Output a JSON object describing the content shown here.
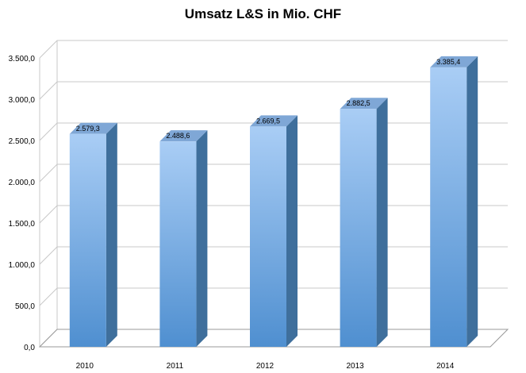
{
  "chart_data": {
    "type": "bar",
    "title": "Umsatz L&S in Mio. CHF",
    "xlabel": "",
    "ylabel": "",
    "categories": [
      "2010",
      "2011",
      "2012",
      "2013",
      "2014"
    ],
    "series": [
      {
        "values": [
          2579.3,
          2488.6,
          2669.5,
          2882.5,
          3385.4
        ]
      }
    ],
    "data_labels": [
      "2.579,3",
      "2.488,6",
      "2.669,5",
      "2.882,5",
      "3.385,4"
    ],
    "ylim": [
      0,
      3500
    ],
    "yticks": [
      0,
      500,
      1000,
      1500,
      2000,
      2500,
      3000,
      3500
    ],
    "ytick_labels": [
      "0,0",
      "500,0",
      "1.000,0",
      "1.500,0",
      "2.000,0",
      "2.500,0",
      "3.000,0",
      "3.500,0"
    ],
    "grid": true,
    "legend": "none",
    "style": "3d-column",
    "colors": {
      "bar_front_top": "#a9cdf5",
      "bar_front_bottom": "#4f8fd0",
      "bar_side": "#3f6f9c",
      "bar_top": "#7fa7d6",
      "grid": "#c8c8c8"
    }
  }
}
